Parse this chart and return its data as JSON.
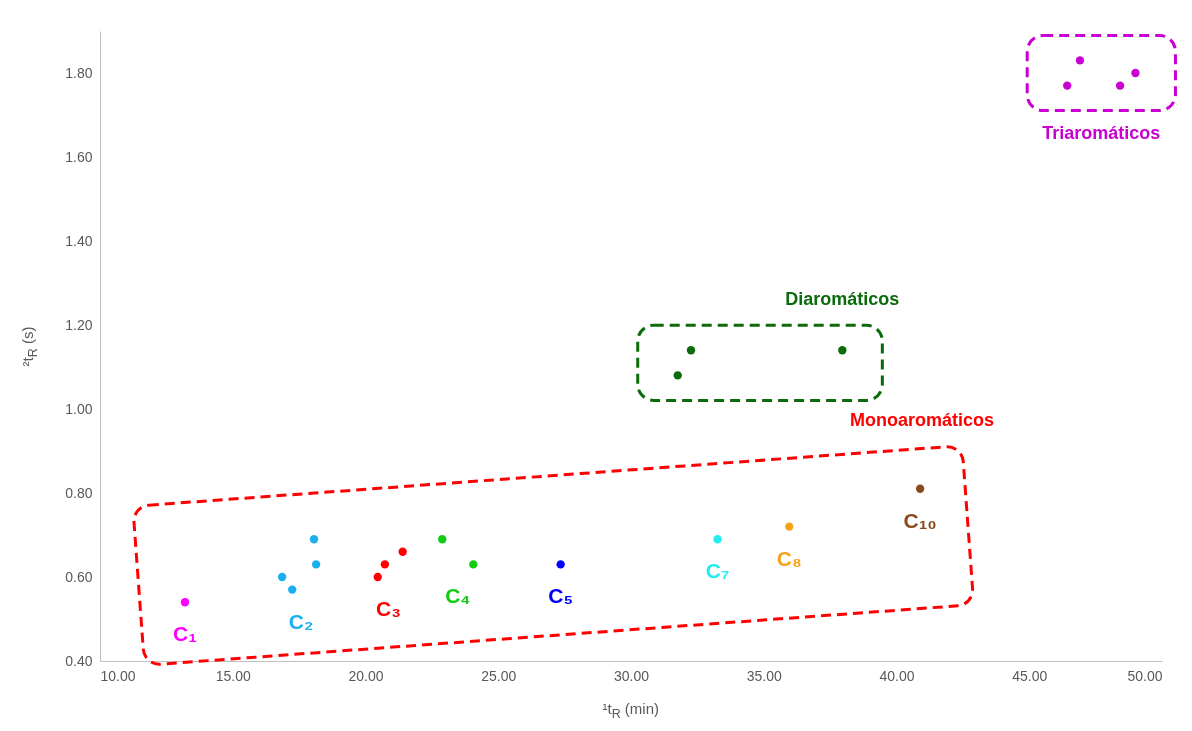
{
  "chart_data": {
    "type": "scatter",
    "xlabel": "¹t$_{R}$ (min)",
    "ylabel": "²t$_{R}$ (s)",
    "marker": "circle",
    "xlim": [
      10,
      50
    ],
    "ylim": [
      0.4,
      1.9
    ],
    "xticks": [
      {
        "value": 10,
        "label": "10.00"
      },
      {
        "value": 15,
        "label": "15.00"
      },
      {
        "value": 20,
        "label": "20.00"
      },
      {
        "value": 25,
        "label": "25.00"
      },
      {
        "value": 30,
        "label": "30.00"
      },
      {
        "value": 35,
        "label": "35.00"
      },
      {
        "value": 40,
        "label": "40.00"
      },
      {
        "value": 45,
        "label": "45.00"
      },
      {
        "value": 50,
        "label": "50.00"
      }
    ],
    "yticks": [
      {
        "value": 0.4,
        "label": "0.40"
      },
      {
        "value": 0.6,
        "label": "0.60"
      },
      {
        "value": 0.8,
        "label": "0.80"
      },
      {
        "value": 1.0,
        "label": "1.00"
      },
      {
        "value": 1.2,
        "label": "1.20"
      },
      {
        "value": 1.4,
        "label": "1.40"
      },
      {
        "value": 1.6,
        "label": "1.60"
      },
      {
        "value": 1.8,
        "label": "1.80"
      }
    ],
    "series": [
      {
        "name": "C₁",
        "color": "#ff00ff",
        "x": [
          13.2
        ],
        "values": [
          0.54
        ]
      },
      {
        "name": "C₂",
        "color": "#1ab0f0",
        "x": [
          16.86,
          17.24,
          18.06,
          18.14
        ],
        "values": [
          0.6,
          0.57,
          0.69,
          0.63
        ]
      },
      {
        "name": "C₃",
        "color": "#ff0000",
        "x": [
          20.46,
          20.73,
          21.4
        ],
        "values": [
          0.6,
          0.63,
          0.66
        ]
      },
      {
        "name": "C₄",
        "color": "#11cc11",
        "x": [
          22.89,
          24.06
        ],
        "values": [
          0.69,
          0.63
        ]
      },
      {
        "name": "C₅",
        "color": "#0000ff",
        "x": [
          27.35
        ],
        "values": [
          0.63
        ]
      },
      {
        "name": "C₇",
        "color": "#22eef0",
        "x": [
          33.26
        ],
        "values": [
          0.69
        ]
      },
      {
        "name": "C₈",
        "color": "#f5a31a",
        "x": [
          35.96
        ],
        "values": [
          0.72
        ]
      },
      {
        "name": "C₁₀",
        "color": "#8b4a1c",
        "x": [
          40.89
        ],
        "values": [
          0.81
        ]
      },
      {
        "color": "#0b6b0b",
        "x": [
          31.76,
          32.26,
          37.96
        ],
        "values": [
          1.08,
          1.14,
          1.14
        ]
      },
      {
        "color": "#c800d2",
        "x": [
          46.43,
          46.91,
          48.42,
          49.0
        ],
        "values": [
          1.77,
          1.83,
          1.77,
          1.8
        ]
      }
    ],
    "annotations": [
      "Monoaromáticos",
      "Diaromáticos",
      "Triaromáticos"
    ]
  }
}
